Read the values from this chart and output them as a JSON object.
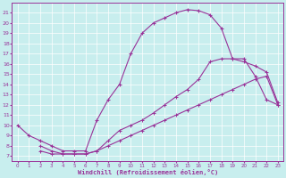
{
  "xlabel": "Windchill (Refroidissement éolien,°C)",
  "background_color": "#c8eeee",
  "line_color": "#993399",
  "xlim": [
    -0.5,
    23.5
  ],
  "ylim": [
    6.5,
    22
  ],
  "yticks": [
    7,
    8,
    9,
    10,
    11,
    12,
    13,
    14,
    15,
    16,
    17,
    18,
    19,
    20,
    21
  ],
  "xticks": [
    0,
    1,
    2,
    3,
    4,
    5,
    6,
    7,
    8,
    9,
    10,
    11,
    12,
    13,
    14,
    15,
    16,
    17,
    18,
    19,
    20,
    21,
    22,
    23
  ],
  "line1_x": [
    0,
    1,
    2,
    3,
    4,
    5,
    6,
    7,
    8,
    9,
    10,
    11,
    12,
    13,
    14,
    15,
    16,
    17,
    18,
    19,
    20,
    21,
    22,
    23
  ],
  "line1_y": [
    10,
    9,
    8.5,
    8,
    7.5,
    7.5,
    7.5,
    10.5,
    12.5,
    14,
    17,
    19,
    20,
    20.5,
    21,
    21.3,
    21.2,
    20.8,
    19.5,
    16.5,
    16.5,
    14.8,
    12.5,
    12.0
  ],
  "line2_x": [
    2,
    3,
    4,
    5,
    6,
    7,
    8,
    9,
    10,
    11,
    12,
    13,
    14,
    15,
    16,
    17,
    18,
    19,
    20,
    21,
    22,
    23
  ],
  "line2_y": [
    8.0,
    7.5,
    7.2,
    7.2,
    7.2,
    7.5,
    8.5,
    9.5,
    10.0,
    10.5,
    11.2,
    12.0,
    12.8,
    13.5,
    14.5,
    16.2,
    16.5,
    16.5,
    16.2,
    15.8,
    15.2,
    12.2
  ],
  "line3_x": [
    2,
    3,
    4,
    5,
    6,
    7,
    8,
    9,
    10,
    11,
    12,
    13,
    14,
    15,
    16,
    17,
    18,
    19,
    20,
    21,
    22,
    23
  ],
  "line3_y": [
    7.5,
    7.2,
    7.2,
    7.2,
    7.2,
    7.5,
    8.0,
    8.5,
    9.0,
    9.5,
    10.0,
    10.5,
    11.0,
    11.5,
    12.0,
    12.5,
    13.0,
    13.5,
    14.0,
    14.5,
    14.8,
    12.0
  ]
}
